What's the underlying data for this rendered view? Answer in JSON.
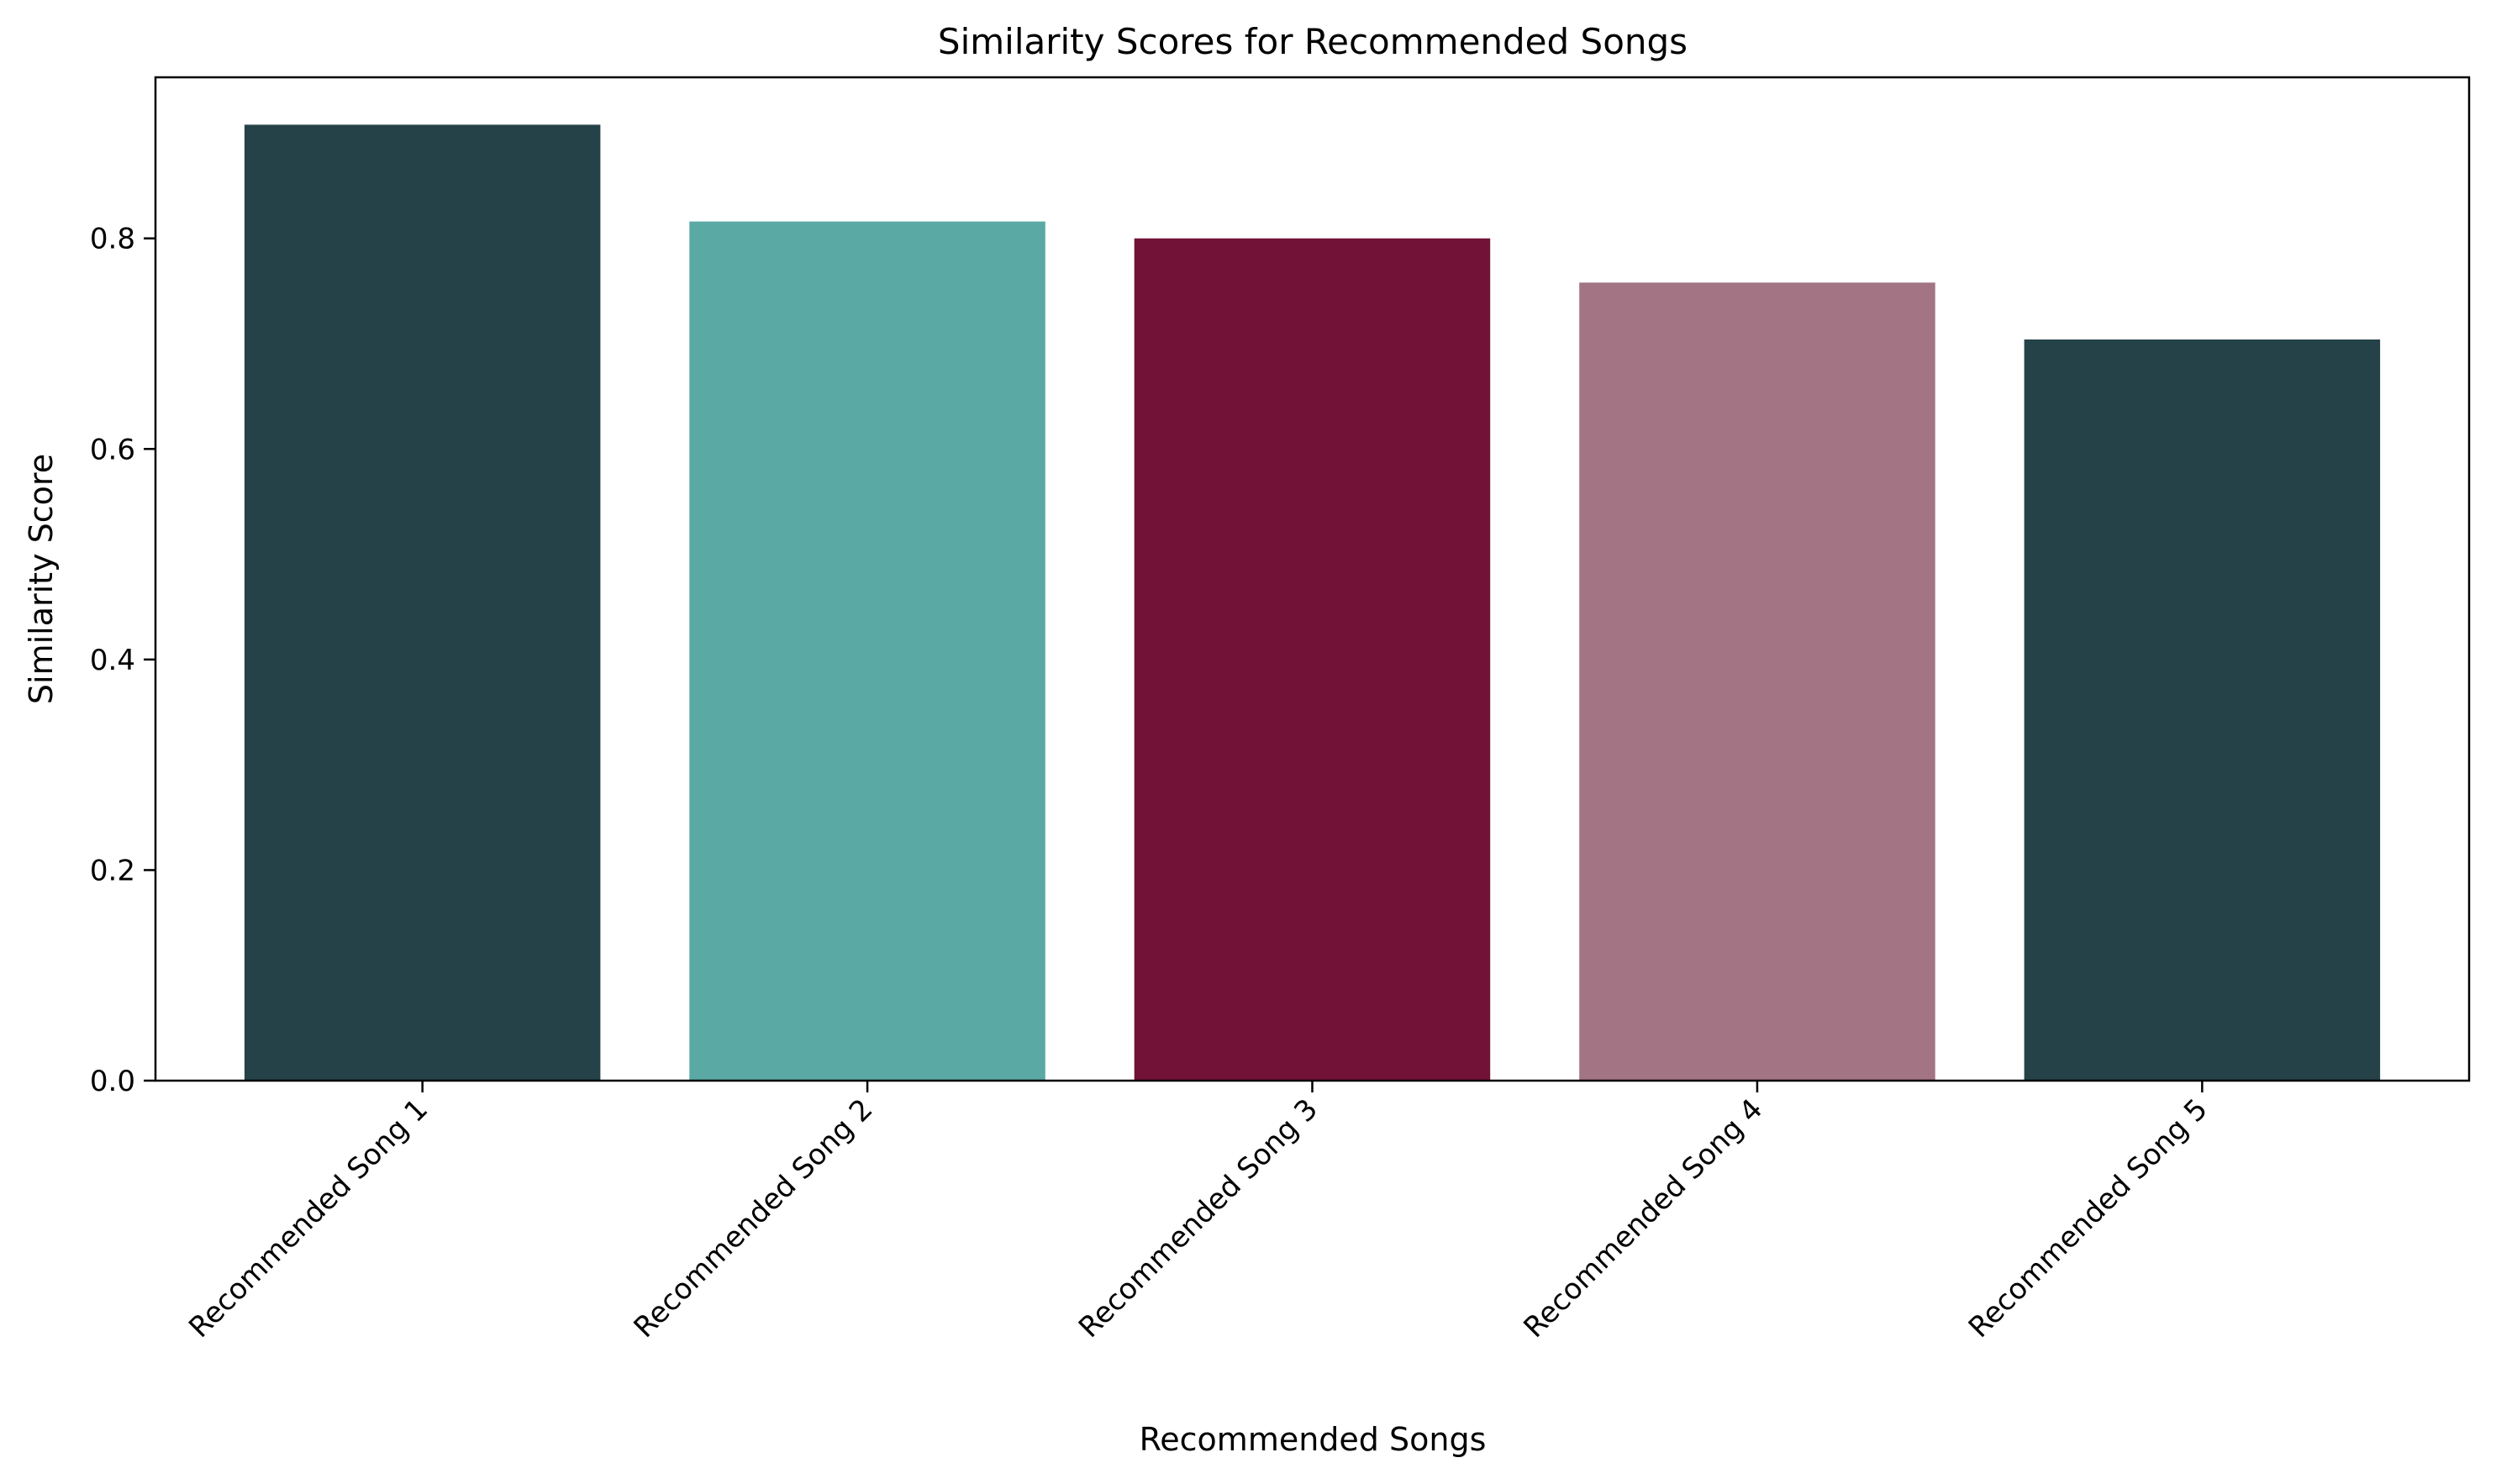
{
  "chart_data": {
    "type": "bar",
    "title": "Similarity Scores for Recommended Songs",
    "xlabel": "Recommended Songs",
    "ylabel": "Similarity Score",
    "categories": [
      "Recommended Song 1",
      "Recommended Song 2",
      "Recommended Song 3",
      "Recommended Song 4",
      "Recommended Song 5"
    ],
    "values": [
      0.908,
      0.816,
      0.8,
      0.758,
      0.704
    ],
    "colors": [
      "#264249",
      "#5ba9a4",
      "#711236",
      "#a37484",
      "#264249"
    ],
    "ylim": [
      0,
      0.953
    ],
    "yticks": [
      "0.0",
      "0.2",
      "0.4",
      "0.6",
      "0.8"
    ],
    "grid": false,
    "legend": "none"
  }
}
